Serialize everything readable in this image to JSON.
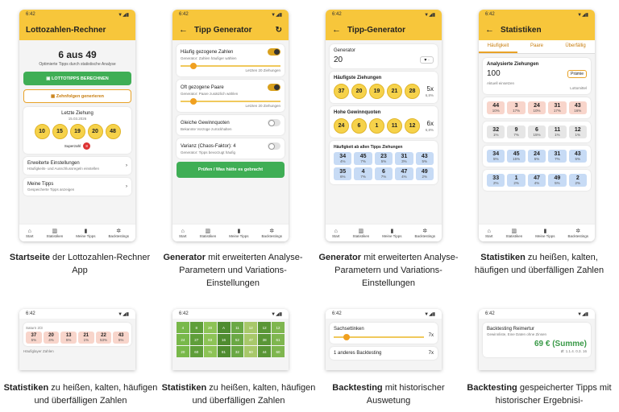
{
  "status": {
    "time": "6:42"
  },
  "p1": {
    "title": "Lottozahlen-Rechner",
    "game": "6 aus 49",
    "tagline": "Optimierte Tipps durch statistische Analyse",
    "btn1": "LOTTOTIPPS BERECHNEN",
    "btn2": "Zehnfolgen generieren",
    "last": "Letzte Ziehung",
    "date": "15.03.2026",
    "balls": [
      "10",
      "15",
      "19",
      "20",
      "48"
    ],
    "super_label": "Superzahl",
    "super": "8",
    "opt1": "Erweiterte Einstellungen",
    "opt1s": "Häufigkeits- und Ausschlussregeln einstellen",
    "opt2": "Meine Tipps",
    "opt2s": "Gespeicherte Tipps anzeigen"
  },
  "nav": {
    "start": "Start",
    "stat": "Statistiken",
    "tips": "Meine Tipps",
    "back": "Backtestings"
  },
  "p2": {
    "title": "Tipp Generator",
    "s1": "Häufig gezogene Zahlen",
    "s1s": "Generator: Zahlen häufiger wählen",
    "s1r": "Letzten 20 Ziehungen",
    "s2": "Oft gezogene Paare",
    "s2s": "Generator: Paare zusätzlich wählen",
    "s2r": "Letzten 20 Ziehungen",
    "s3": "Gleiche Gewinnquoten",
    "s3s": "Bekannte Vorzüge zurückhalten",
    "s4": "Varianz (Chaos-Faktor): 4",
    "s4s": "Generator: Tipps bevorzugt häufig",
    "btn": "Prüfen / Was hätte es gebracht"
  },
  "p3": {
    "title": "Tipp-Generator",
    "gen_label": "Generator",
    "gen_value": "20",
    "freq": "Häufigste Ziehungen",
    "freq_balls": [
      "37",
      "20",
      "19",
      "21",
      "28"
    ],
    "freq_x": "5x",
    "freq_p": "6,8%",
    "pairs": "Hohe Gewinnquoten",
    "pair_balls": [
      "24",
      "6",
      "1",
      "11",
      "12"
    ],
    "pair_x": "6x",
    "pair_p": "6,8%",
    "tbl_title": "Häufigkeit ab allen Tipps Ziehungen",
    "cells": [
      [
        "34",
        "4%"
      ],
      [
        "45",
        "7%"
      ],
      [
        "23",
        "5%"
      ],
      [
        "31",
        "3%"
      ],
      [
        "43",
        "5%"
      ],
      [
        "35",
        "6%"
      ],
      [
        "4",
        "7%"
      ],
      [
        "6",
        "7%"
      ],
      [
        "47",
        "4%"
      ],
      [
        "49",
        "2%"
      ]
    ]
  },
  "p4": {
    "title": "Statistiken",
    "tabs": [
      "Häufigkeit",
      "Paare",
      "Überfällig"
    ],
    "anl": "Analysierte Ziehungen",
    "anl_val": "100",
    "anl_btn": "Prämie",
    "filter": "Aktuell einsetzen",
    "filter_s": "Lottomittel",
    "rows": [
      [
        [
          "44",
          "10%",
          "hot"
        ],
        [
          "3",
          "17%",
          "hot"
        ],
        [
          "24",
          "10%",
          "hot"
        ],
        [
          "31",
          "17%",
          "hot"
        ],
        [
          "43",
          "16%",
          "hot"
        ]
      ],
      [
        [
          "32",
          "1%",
          "grey"
        ],
        [
          "9",
          "7%",
          "grey"
        ],
        [
          "6",
          "15%",
          "grey"
        ],
        [
          "11",
          "1%",
          "grey"
        ],
        [
          "12",
          "1%",
          "grey"
        ]
      ],
      [
        [
          "34",
          "5%",
          "blue"
        ],
        [
          "45",
          "15%",
          "blue"
        ],
        [
          "24",
          "5%",
          "blue"
        ],
        [
          "31",
          "7%",
          "blue"
        ],
        [
          "43",
          "5%",
          "blue"
        ]
      ],
      [
        [
          "33",
          "2%",
          "blue"
        ],
        [
          "1",
          "2%",
          "blue"
        ],
        [
          "47",
          "4%",
          "blue"
        ],
        [
          "49",
          "5%",
          "blue"
        ],
        [
          "2",
          "2%",
          "blue"
        ]
      ]
    ]
  },
  "p5": {
    "label": "Saturn 2/3",
    "cells": [
      [
        "37",
        "5%"
      ],
      [
        "20",
        "4%"
      ],
      [
        "13",
        "5%"
      ],
      [
        "21",
        "1%"
      ],
      [
        "22",
        "53%"
      ],
      [
        "43",
        "5%"
      ]
    ],
    "foot": "Häufiglayer Zahlen"
  },
  "p6": {
    "heat": [
      "4",
      "8",
      "20",
      "A",
      "11",
      "12",
      "12",
      "12",
      "24",
      "27",
      "83",
      "16",
      "52",
      "47",
      "38",
      "61",
      "20",
      "60",
      "71",
      "81",
      "32",
      "60",
      "44",
      "60"
    ]
  },
  "p7": {
    "label": "Sachsettinken",
    "val": "7x",
    "label2": "1 anderes Backtesting",
    "val2": "7x"
  },
  "p8": {
    "label": "Backtesting Reimertur",
    "sub": "Gewinnliste, Eine Daten ohne Zinsen",
    "amount": "69 € (Summe)",
    "detail": "Ø: 1.1.4. 0.3. 16"
  },
  "caps": {
    "c1b": "Startseite",
    "c1": " der Lottozahlen-Rechner App",
    "c2b": "Generator",
    "c2": " mit erweiterten Analyse-Parametern und Variations-Einstellungen",
    "c3b": "Generator",
    "c3": " mit erweiterten Analyse-Parametern und Variations-Einstellungen",
    "c4b": "Statistiken",
    "c4": " zu heißen, kalten, häufigen und überfälligen Zahlen",
    "c5b": "Statistiken",
    "c5": " zu heißen, kalten, häufigen und überfälligen Zahlen",
    "c6b": "Statistiken",
    "c6": " zu heißen, kalten, häufigen und überfälligen Zahlen",
    "c7b": "Backtesting",
    "c7": " mit historischer Auswetung",
    "c8b": "Backtesting",
    "c8": " gespeicherter Tipps mit historischer Ergebnisi-"
  }
}
